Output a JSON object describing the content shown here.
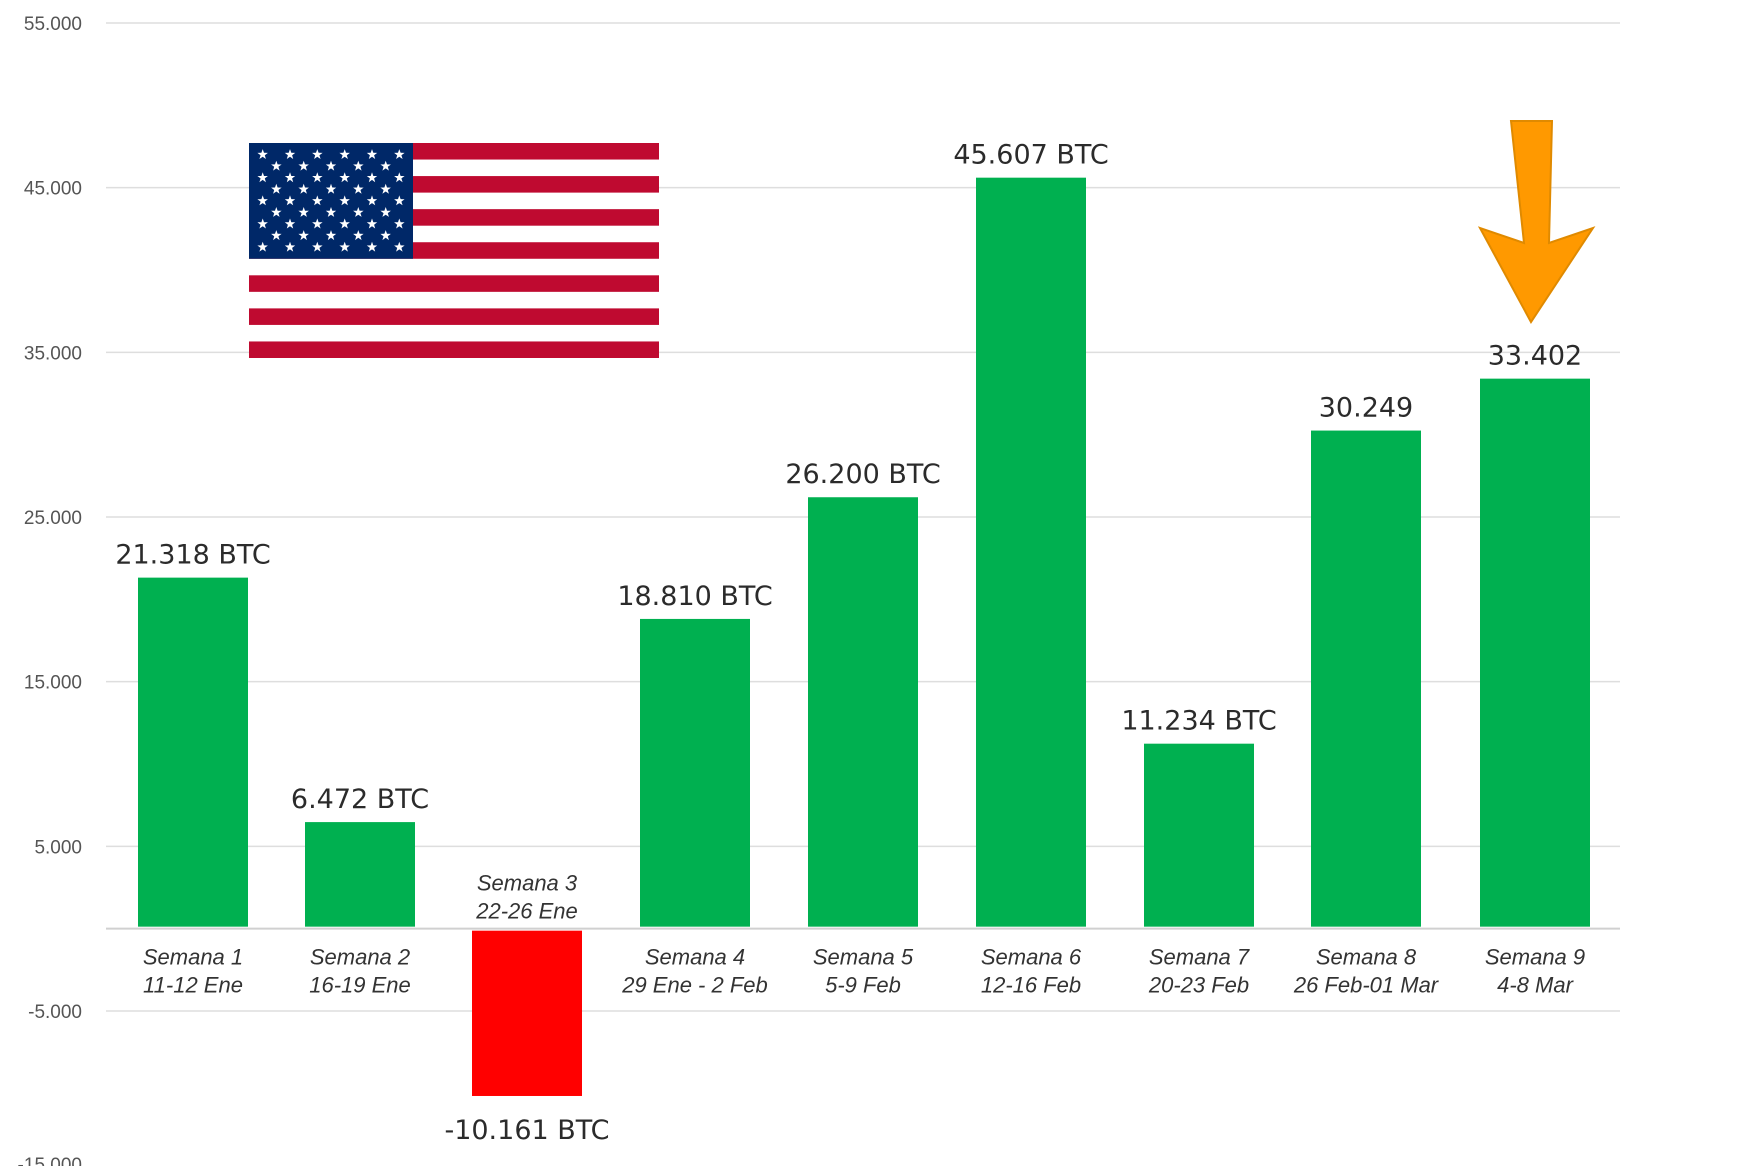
{
  "chart_data": {
    "type": "bar",
    "title": "",
    "xlabel": "",
    "ylabel": "",
    "ylim": [
      -15000,
      55000
    ],
    "y_ticks": [
      -5000,
      5000,
      15000,
      25000,
      35000,
      45000,
      55000
    ],
    "y_tick_labels": [
      "-5.000",
      "5.000",
      "15.000",
      "25.000",
      "35.000",
      "45.000",
      "55.000"
    ],
    "bottom_tick_partial": "-15.000",
    "categories": [
      [
        "Semana 1",
        "11-12 Ene"
      ],
      [
        "Semana 2",
        "16-19 Ene"
      ],
      [
        "Semana 3",
        "22-26 Ene"
      ],
      [
        "Semana 4",
        "29 Ene - 2 Feb"
      ],
      [
        "Semana 5",
        "5-9 Feb"
      ],
      [
        "Semana 6",
        "12-16 Feb"
      ],
      [
        "Semana 7",
        "20-23 Feb"
      ],
      [
        "Semana 8",
        "26 Feb-01 Mar"
      ],
      [
        "Semana 9",
        "4-8 Mar"
      ]
    ],
    "values": [
      21318,
      6472,
      -10161,
      18810,
      26200,
      45607,
      11234,
      30249,
      33402
    ],
    "data_labels": [
      "21.318 BTC",
      "6.472 BTC",
      "-10.161 BTC",
      "18.810 BTC",
      "26.200 BTC",
      "45.607 BTC",
      "11.234 BTC",
      "30.249",
      "33.402"
    ],
    "grid": true,
    "colors": {
      "positive": "#00b050",
      "negative": "#ff0000",
      "highlight_arrow": "#ff9900"
    },
    "highlighted_category_index": 8
  },
  "decorations": {
    "flag": "united-states-flag",
    "arrow_icon": "down-arrow-icon"
  }
}
